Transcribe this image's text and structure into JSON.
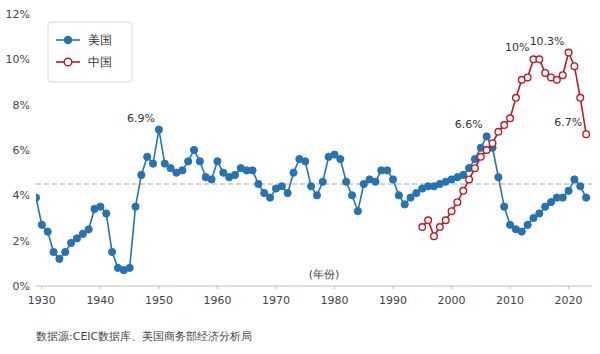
{
  "chart_data": {
    "type": "line",
    "x_label": "(年份)",
    "source": "数据源:CEIC数据库、美国商务部经济分析局",
    "x": [
      1929,
      1930,
      1931,
      1932,
      1933,
      1934,
      1935,
      1936,
      1937,
      1938,
      1939,
      1940,
      1941,
      1942,
      1943,
      1944,
      1945,
      1946,
      1947,
      1948,
      1949,
      1950,
      1951,
      1952,
      1953,
      1954,
      1955,
      1956,
      1957,
      1958,
      1959,
      1960,
      1961,
      1962,
      1963,
      1964,
      1965,
      1966,
      1967,
      1968,
      1969,
      1970,
      1971,
      1972,
      1973,
      1974,
      1975,
      1976,
      1977,
      1978,
      1979,
      1980,
      1981,
      1982,
      1983,
      1984,
      1985,
      1986,
      1987,
      1988,
      1989,
      1990,
      1991,
      1992,
      1993,
      1994,
      1995,
      1996,
      1997,
      1998,
      1999,
      2000,
      2001,
      2002,
      2003,
      2004,
      2005,
      2006,
      2007,
      2008,
      2009,
      2010,
      2011,
      2012,
      2013,
      2014,
      2015,
      2016,
      2017,
      2018,
      2019,
      2020,
      2021,
      2022,
      2023
    ],
    "series": [
      {
        "name": "美国",
        "color": "#2473b3",
        "marker": "circle",
        "values": [
          3.9,
          2.7,
          2.4,
          1.5,
          1.2,
          1.5,
          1.9,
          2.1,
          2.3,
          2.5,
          3.4,
          3.5,
          3.2,
          1.5,
          0.8,
          0.7,
          0.8,
          3.5,
          4.9,
          5.7,
          5.4,
          6.9,
          5.4,
          5.2,
          5.0,
          5.1,
          5.5,
          6.0,
          5.5,
          4.8,
          4.7,
          5.5,
          5.0,
          4.8,
          4.9,
          5.2,
          5.1,
          5.1,
          4.5,
          4.1,
          3.9,
          4.3,
          4.4,
          4.1,
          5.0,
          5.6,
          5.5,
          4.4,
          4.0,
          4.6,
          5.7,
          5.8,
          5.6,
          4.6,
          4.0,
          3.3,
          4.5,
          4.7,
          4.6,
          5.1,
          5.1,
          4.7,
          4.0,
          3.6,
          3.9,
          4.1,
          4.3,
          4.4,
          4.4,
          4.5,
          4.6,
          4.7,
          4.8,
          4.9,
          5.2,
          5.6,
          6.1,
          6.6,
          6.1,
          4.8,
          3.5,
          2.7,
          2.5,
          2.4,
          2.7,
          3.0,
          3.2,
          3.5,
          3.7,
          3.9,
          3.9,
          4.2,
          4.7,
          4.4,
          3.9
        ]
      },
      {
        "name": "中国",
        "color": "#c01920",
        "marker": "circle_open",
        "values": [
          null,
          null,
          null,
          null,
          null,
          null,
          null,
          null,
          null,
          null,
          null,
          null,
          null,
          null,
          null,
          null,
          null,
          null,
          null,
          null,
          null,
          null,
          null,
          null,
          null,
          null,
          null,
          null,
          null,
          null,
          null,
          null,
          null,
          null,
          null,
          null,
          null,
          null,
          null,
          null,
          null,
          null,
          null,
          null,
          null,
          null,
          null,
          null,
          null,
          null,
          null,
          null,
          null,
          null,
          null,
          null,
          null,
          null,
          null,
          null,
          null,
          null,
          null,
          null,
          null,
          null,
          2.6,
          2.9,
          2.2,
          2.6,
          2.9,
          3.3,
          3.7,
          4.2,
          4.7,
          5.2,
          5.7,
          6.0,
          6.3,
          6.8,
          7.1,
          7.4,
          8.3,
          9.1,
          9.2,
          10.0,
          10.0,
          9.4,
          9.2,
          9.1,
          9.3,
          10.3,
          9.7,
          8.3,
          6.7
        ]
      }
    ],
    "xlim": [
      1929,
      2024
    ],
    "xticks": [
      1930,
      1940,
      1950,
      1960,
      1970,
      1980,
      1990,
      2000,
      2010,
      2020
    ],
    "ylim": [
      0,
      12
    ],
    "yticks": [
      {
        "value": 0,
        "label": "0%"
      },
      {
        "value": 2,
        "label": "2%"
      },
      {
        "value": 4,
        "label": "4%"
      },
      {
        "value": 6,
        "label": "6%"
      },
      {
        "value": 8,
        "label": "8%"
      },
      {
        "value": 10,
        "label": "10%"
      },
      {
        "value": 12,
        "label": "12%"
      }
    ],
    "reference_line": {
      "value": 4.5,
      "line_style": "dashed"
    },
    "annotations": [
      {
        "text": "6.9%",
        "x": 1950,
        "y": 6.9
      },
      {
        "text": "6.6%",
        "x": 2006,
        "y": 6.6
      },
      {
        "text": "10%",
        "x": 2014,
        "y": 10.0
      },
      {
        "text": "10.3%",
        "x": 2020,
        "y": 10.3
      },
      {
        "text": "6.7%",
        "x": 2023,
        "y": 6.7
      }
    ],
    "legend": "upper left",
    "grid": false
  }
}
